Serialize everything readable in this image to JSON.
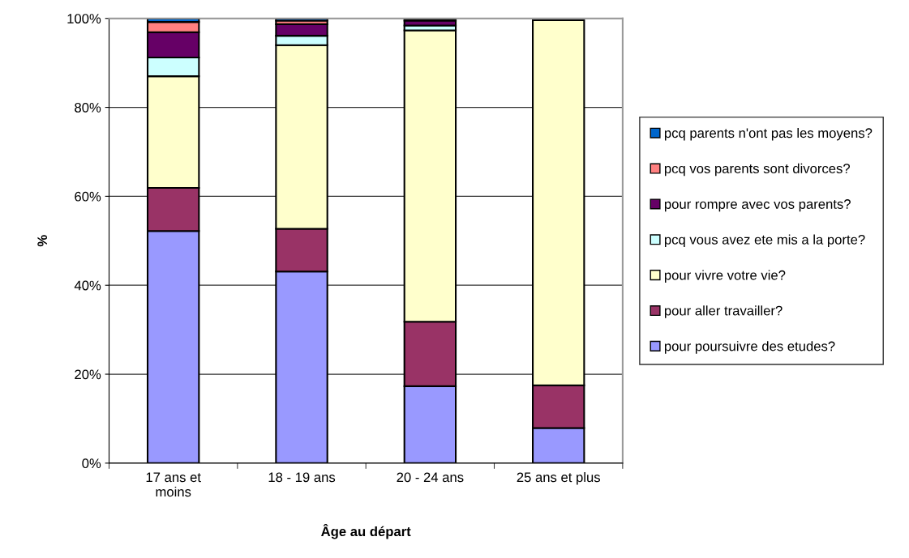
{
  "chart_data": {
    "type": "bar",
    "stacked": true,
    "xlabel": "Âge au départ",
    "ylabel": "%",
    "categories": [
      "17 ans et\nmoins",
      "18 - 19 ans",
      "20 - 24 ans",
      "25 ans et plus"
    ],
    "series": [
      {
        "name": "pour poursuivre des etudes?",
        "color": "#9999ff",
        "values": [
          52.2,
          43.1,
          17.3,
          7.9
        ]
      },
      {
        "name": "pour aller travailler?",
        "color": "#993366",
        "values": [
          9.7,
          9.6,
          14.5,
          9.6
        ]
      },
      {
        "name": "pour vivre votre vie?",
        "color": "#ffffcc",
        "values": [
          25.1,
          41.3,
          65.5,
          82.1
        ]
      },
      {
        "name": "pcq vous avez ete mis a la porte?",
        "color": "#ccffff",
        "values": [
          4.2,
          2.1,
          1.1,
          null
        ]
      },
      {
        "name": "pour rompre avec vos parents?",
        "color": "#660066",
        "values": [
          5.7,
          2.6,
          1.1,
          null
        ]
      },
      {
        "name": "pcq vos parents sont divorces?",
        "color": "#ff8080",
        "values": [
          2.3,
          0.8,
          0.2,
          null
        ]
      },
      {
        "name": "pcq parents n'ont pas les moyens?",
        "color": "#0066cc",
        "values": [
          0.8,
          0.5,
          null,
          null
        ]
      }
    ],
    "ylim": [
      0,
      100
    ],
    "yticks": [
      {
        "value": 0,
        "label": "0%"
      },
      {
        "value": 20,
        "label": "20%"
      },
      {
        "value": 40,
        "label": "40%"
      },
      {
        "value": 60,
        "label": "60%"
      },
      {
        "value": 80,
        "label": "80%"
      },
      {
        "value": 100,
        "label": "100%"
      }
    ],
    "grid": "y",
    "legend": "right"
  }
}
